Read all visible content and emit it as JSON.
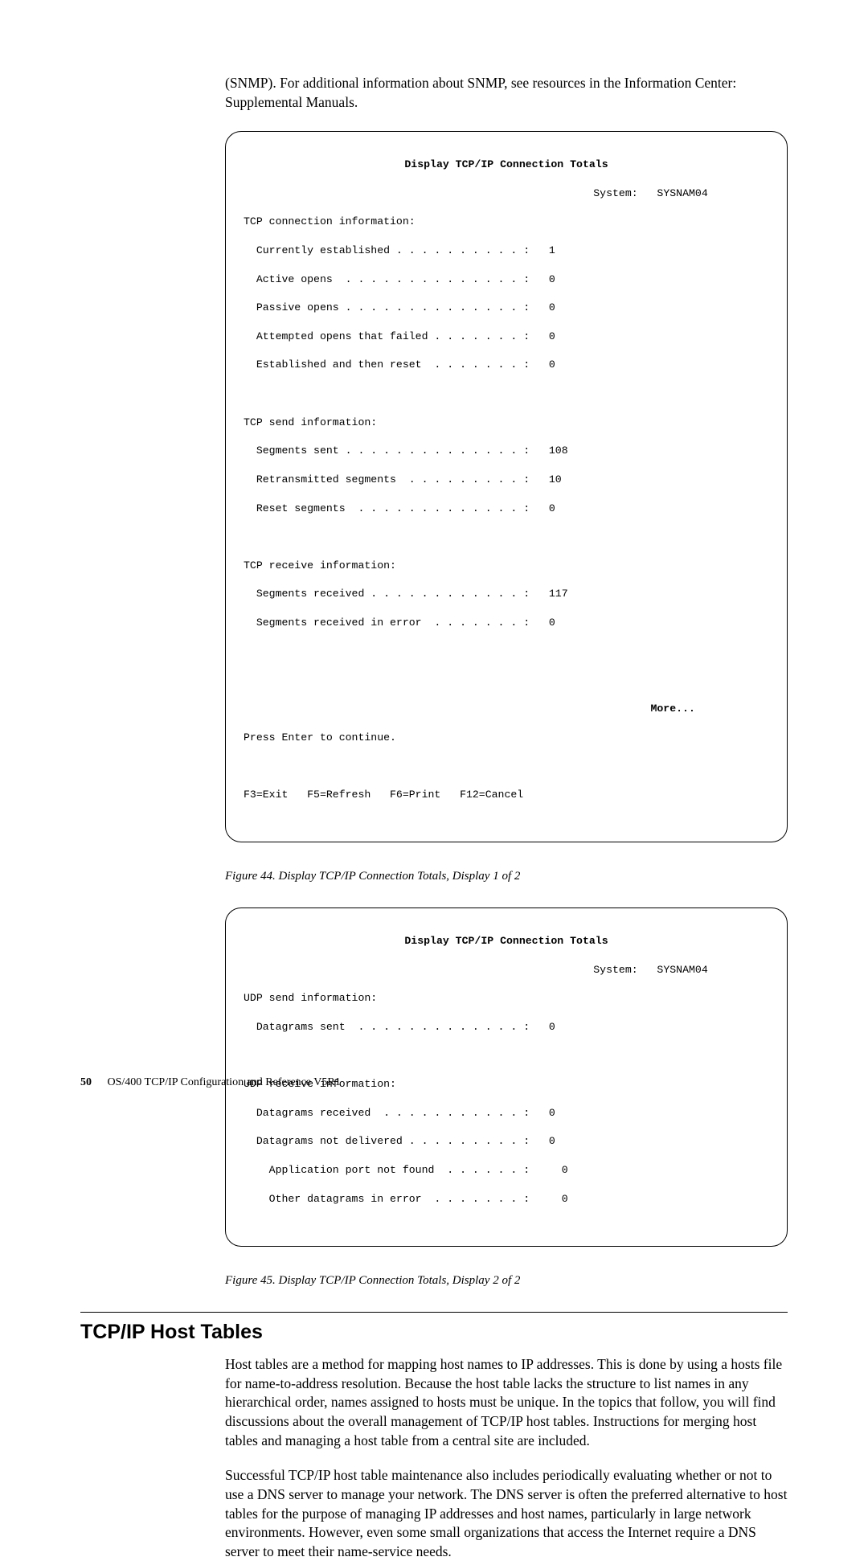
{
  "intro": "(SNMP). For additional information about SNMP, see resources in the Information Center: Supplemental Manuals.",
  "terminal1": {
    "title": "Display TCP/IP Connection Totals",
    "system_label": "System:",
    "system_name": "SYSNAM04",
    "sections": {
      "conn_header": "TCP connection information:",
      "conn_rows": [
        {
          "label": "Currently established . . . . . . . . . . :",
          "value": "1"
        },
        {
          "label": "Active opens  . . . . . . . . . . . . . . :",
          "value": "0"
        },
        {
          "label": "Passive opens . . . . . . . . . . . . . . :",
          "value": "0"
        },
        {
          "label": "Attempted opens that failed . . . . . . . :",
          "value": "0"
        },
        {
          "label": "Established and then reset  . . . . . . . :",
          "value": "0"
        }
      ],
      "send_header": "TCP send information:",
      "send_rows": [
        {
          "label": "Segments sent . . . . . . . . . . . . . . :",
          "value": "108"
        },
        {
          "label": "Retransmitted segments  . . . . . . . . . :",
          "value": "10"
        },
        {
          "label": "Reset segments  . . . . . . . . . . . . . :",
          "value": "0"
        }
      ],
      "recv_header": "TCP receive information:",
      "recv_rows": [
        {
          "label": "Segments received . . . . . . . . . . . . :",
          "value": "117"
        },
        {
          "label": "Segments received in error  . . . . . . . :",
          "value": "0"
        }
      ]
    },
    "more": "More...",
    "press_enter": "Press Enter to continue.",
    "fkeys": "F3=Exit   F5=Refresh   F6=Print   F12=Cancel"
  },
  "caption1": "Figure 44. Display TCP/IP Connection Totals, Display 1 of 2",
  "terminal2": {
    "title": "Display TCP/IP Connection Totals",
    "system_label": "System:",
    "system_name": "SYSNAM04",
    "sections": {
      "udp_send_header": "UDP send information:",
      "udp_send_rows": [
        {
          "label": "Datagrams sent  . . . . . . . . . . . . . :",
          "value": "0"
        }
      ],
      "udp_recv_header": "UDP receive information:",
      "udp_recv_rows": [
        {
          "label": "Datagrams received  . . . . . . . . . . . :",
          "value": "0"
        },
        {
          "label": "Datagrams not delivered . . . . . . . . . :",
          "value": "0"
        },
        {
          "label": "  Application port not found  . . . . . . :",
          "value": "  0"
        },
        {
          "label": "  Other datagrams in error  . . . . . . . :",
          "value": "  0"
        }
      ]
    }
  },
  "caption2": "Figure 45. Display TCP/IP Connection Totals, Display 2 of 2",
  "section_heading": "TCP/IP Host Tables",
  "para1": "Host tables are a method for mapping host names to IP addresses. This is done by using a hosts file for name-to-address resolution. Because the host table lacks the structure to list names in any hierarchical order, names assigned to hosts must be unique. In the topics that follow, you will find discussions about the overall management of TCP/IP host tables. Instructions for merging host tables and managing a host table from a central site are included.",
  "para2": "Successful TCP/IP host table maintenance also includes periodically evaluating whether or not to use a DNS server to manage your network. The DNS server is often the preferred alternative to host tables for the purpose of managing IP addresses and host names, particularly in large network environments. However, even some small organizations that access the Internet require a DNS server to meet their name-service needs.",
  "footer": {
    "pagenum": "50",
    "booktitle": "OS/400 TCP/IP Configuration and Reference V5R1"
  }
}
